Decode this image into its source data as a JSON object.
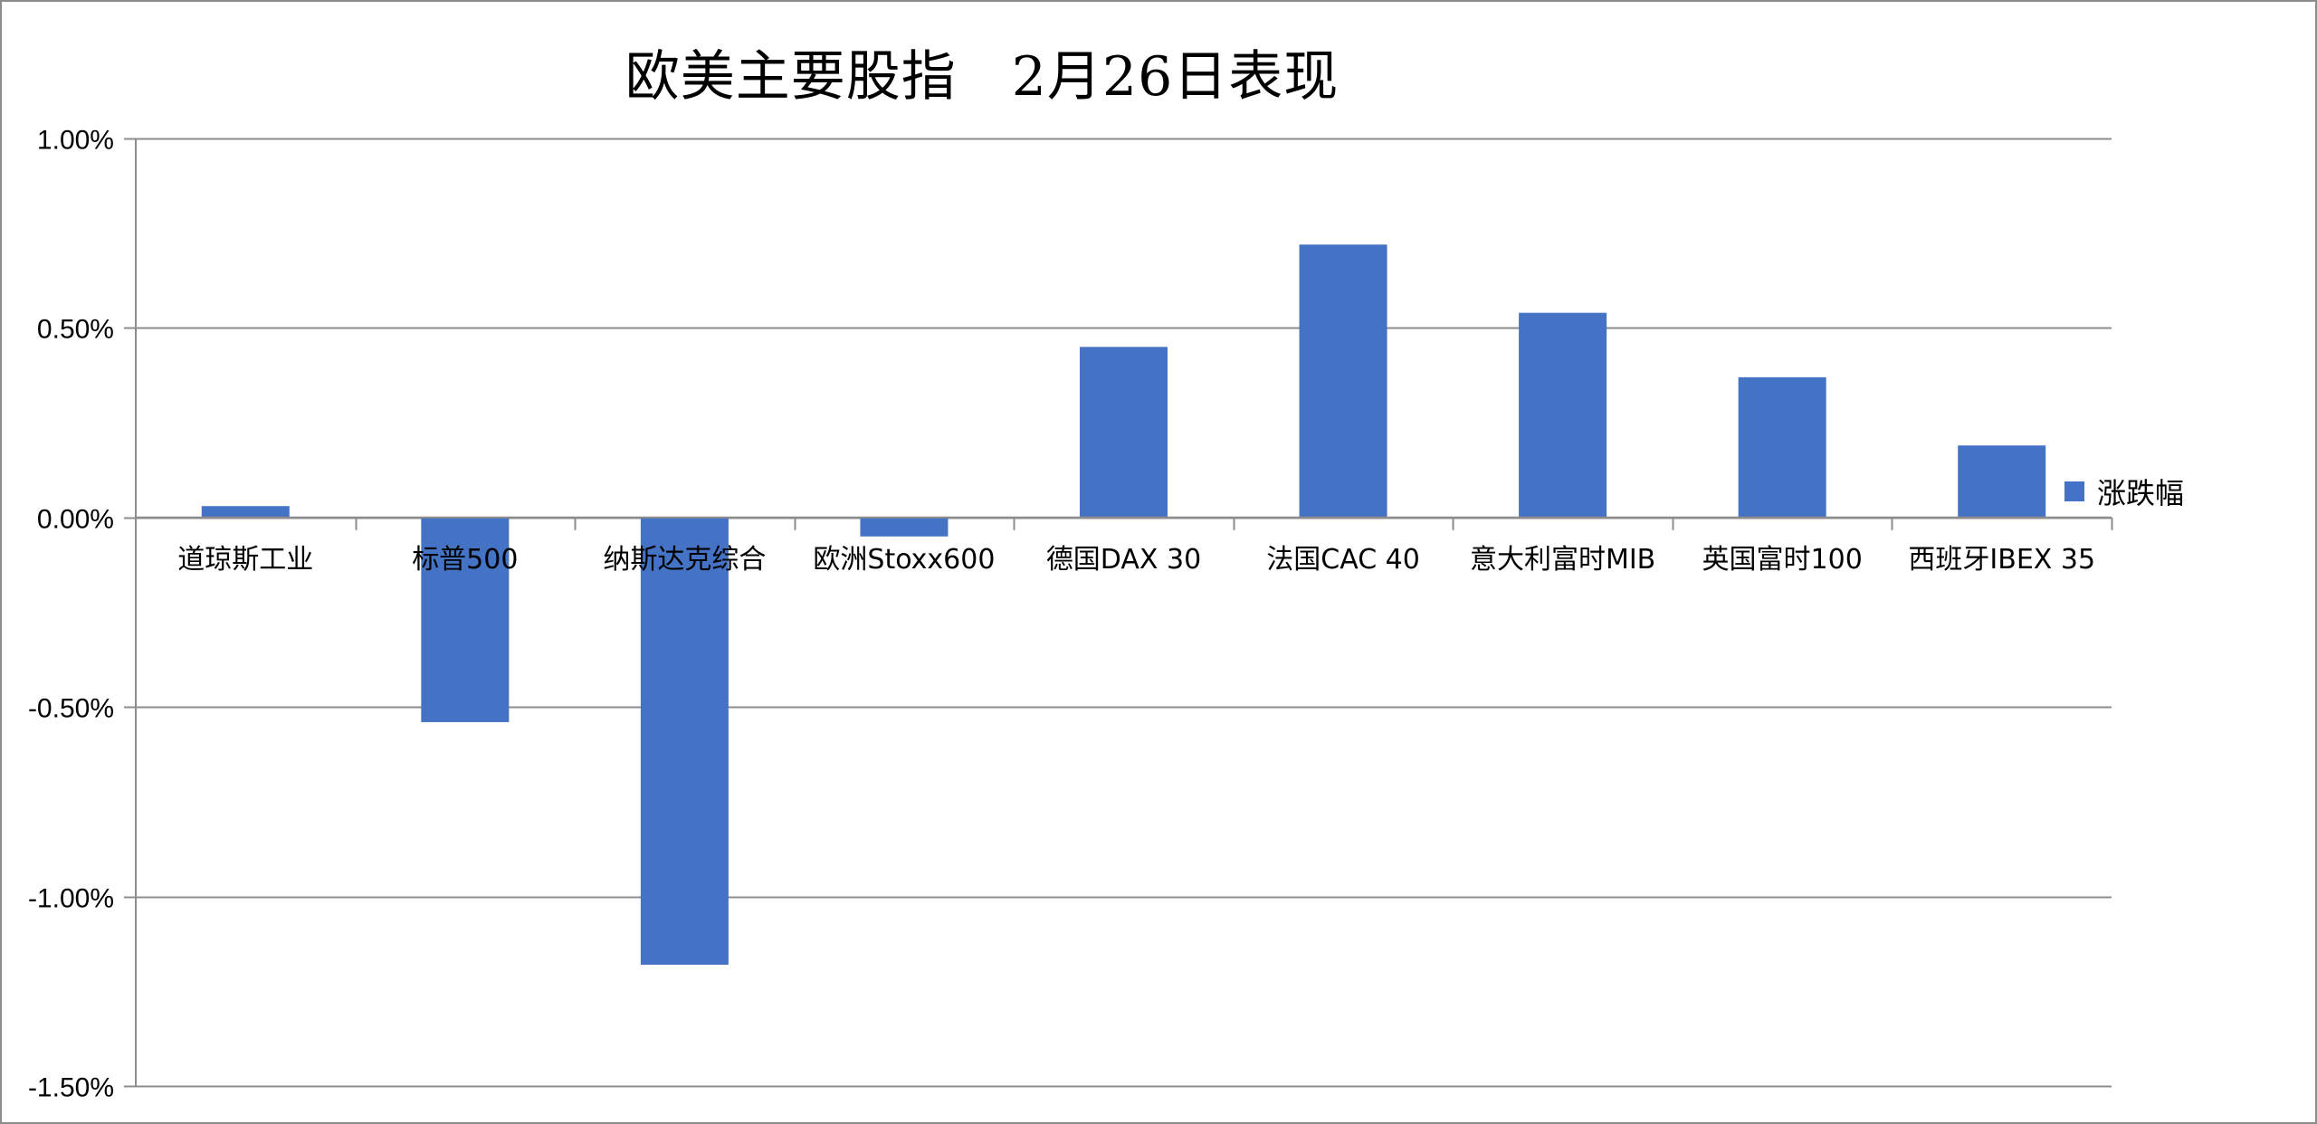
{
  "chart_data": {
    "type": "bar",
    "title": "欧美主要股指　2月26日表现",
    "xlabel": "",
    "ylabel": "",
    "ylim": [
      -0.015,
      0.01
    ],
    "yticks": [
      "1.00%",
      "0.50%",
      "0.00%",
      "-0.50%",
      "-1.00%",
      "-1.50%"
    ],
    "ytick_values": [
      0.01,
      0.005,
      0.0,
      -0.005,
      -0.01,
      -0.015
    ],
    "grid": true,
    "legend_position": "right",
    "categories": [
      "道琼斯工业",
      "标普500",
      "纳斯达克综合",
      "欧洲Stoxx600",
      "德国DAX 30",
      "法国CAC 40",
      "意大利富时MIB",
      "英国富时100",
      "西班牙IBEX 35"
    ],
    "series": [
      {
        "name": "涨跌幅",
        "color": "#4472c4",
        "values": [
          0.0003,
          -0.0054,
          -0.0118,
          -0.0005,
          0.0045,
          0.0072,
          0.0054,
          0.0037,
          0.0019
        ]
      }
    ]
  },
  "legend": {
    "label": "涨跌幅"
  },
  "colors": {
    "bar": "#4472c4",
    "grid": "#8c8c8c",
    "border": "#8c8c8c"
  }
}
